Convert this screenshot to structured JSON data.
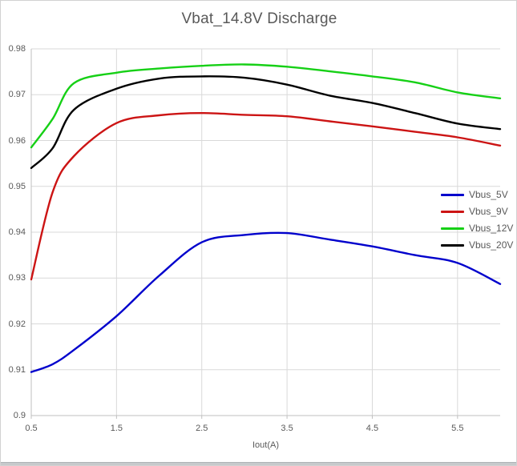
{
  "window": {
    "background": "#ffffff"
  },
  "chart_data": {
    "type": "line",
    "title": "Vbat_14.8V Discharge",
    "xlabel": "Iout(A)",
    "ylabel": "",
    "x": [
      0.5,
      0.75,
      1.0,
      1.5,
      2.0,
      2.5,
      3.0,
      3.5,
      4.0,
      4.5,
      5.0,
      5.5,
      6.0
    ],
    "series": [
      {
        "name": "Vbus_5V",
        "color": "#0000cc",
        "values": [
          0.9095,
          0.9112,
          0.9143,
          0.9217,
          0.9305,
          0.9378,
          0.9394,
          0.9398,
          0.9384,
          0.9369,
          0.935,
          0.9333,
          0.9287
        ]
      },
      {
        "name": "Vbus_9V",
        "color": "#cc1414",
        "values": [
          0.9297,
          0.9487,
          0.9566,
          0.9638,
          0.9655,
          0.966,
          0.9656,
          0.9653,
          0.9642,
          0.9631,
          0.9619,
          0.9607,
          0.9589
        ]
      },
      {
        "name": "Vbus_12V",
        "color": "#16d016",
        "values": [
          0.9585,
          0.9647,
          0.9725,
          0.9748,
          0.9757,
          0.9763,
          0.9766,
          0.9761,
          0.9751,
          0.974,
          0.9727,
          0.9705,
          0.9692
        ]
      },
      {
        "name": "Vbus_20V",
        "color": "#000000",
        "values": [
          0.954,
          0.9583,
          0.9667,
          0.9713,
          0.9735,
          0.974,
          0.9737,
          0.9722,
          0.9698,
          0.9682,
          0.966,
          0.9637,
          0.9625
        ]
      }
    ],
    "xlim": [
      0.5,
      6.0
    ],
    "ylim": [
      0.9,
      0.98
    ],
    "xticks": [
      0.5,
      1.5,
      2.5,
      3.5,
      4.5,
      5.5
    ],
    "ytick_labels": [
      "0.9",
      "0.91",
      "0.92",
      "0.93",
      "0.94",
      "0.95",
      "0.96",
      "0.97",
      "0.98"
    ],
    "grid": true,
    "legend_position": "right-middle",
    "colors": {
      "text": "#595959",
      "grid": "#d9d9d9",
      "axis": "#bfbfbf"
    }
  }
}
